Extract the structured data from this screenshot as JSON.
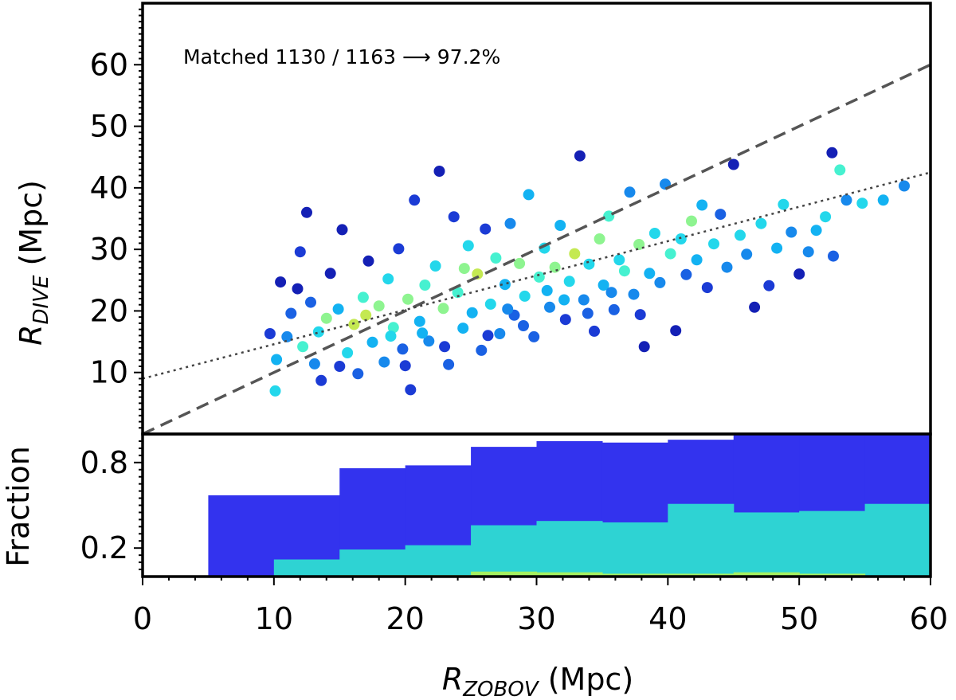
{
  "chart_data": [
    {
      "type": "scatter",
      "panel": "top",
      "xlabel_main": "R",
      "xlabel_sub": "ZOBOV",
      "xlabel_unit": " (Mpc)",
      "ylabel_main": "R",
      "ylabel_sub": "DIVE",
      "ylabel_unit": " (Mpc)",
      "xlim": [
        0,
        60
      ],
      "ylim": [
        0,
        70
      ],
      "yticks": [
        10,
        20,
        30,
        40,
        50,
        60
      ],
      "ytick_labels": [
        "10",
        "20",
        "30",
        "40",
        "50",
        "60"
      ],
      "annotation": "Matched 1130 / 1163 ⟶ 97.2%",
      "lines": [
        {
          "name": "one-to-one",
          "style": "dashed",
          "x": [
            0,
            60
          ],
          "y": [
            0,
            60
          ],
          "color": "#555555"
        },
        {
          "name": "fit",
          "style": "dotted",
          "x": [
            0,
            60
          ],
          "y": [
            9,
            42.5
          ],
          "color": "#444444"
        }
      ],
      "colormap": [
        "#0a0a8c",
        "#1b2fd0",
        "#1a6de8",
        "#13b2f2",
        "#2ef0e6",
        "#a6f57a",
        "#f2d816"
      ],
      "points": [
        [
          9.7,
          16.3,
          0.2
        ],
        [
          10.2,
          12.1,
          0.5
        ],
        [
          10.5,
          24.7,
          0.1
        ],
        [
          10.1,
          7.0,
          0.6
        ],
        [
          11.3,
          19.6,
          0.3
        ],
        [
          11.8,
          23.6,
          0.1
        ],
        [
          12.2,
          14.2,
          0.7
        ],
        [
          12.5,
          36.0,
          0.1
        ],
        [
          12.0,
          29.6,
          0.2
        ],
        [
          13.1,
          11.4,
          0.4
        ],
        [
          13.6,
          8.7,
          0.2
        ],
        [
          14.0,
          18.8,
          0.8
        ],
        [
          14.3,
          26.1,
          0.1
        ],
        [
          14.9,
          20.3,
          0.5
        ],
        [
          15.2,
          33.2,
          0.1
        ],
        [
          15.6,
          13.2,
          0.6
        ],
        [
          16.1,
          17.8,
          0.9
        ],
        [
          16.4,
          9.8,
          0.3
        ],
        [
          16.8,
          22.2,
          0.7
        ],
        [
          17.2,
          28.1,
          0.1
        ],
        [
          17.5,
          14.9,
          0.5
        ],
        [
          18.0,
          20.8,
          0.8
        ],
        [
          18.4,
          11.7,
          0.4
        ],
        [
          18.7,
          25.2,
          0.6
        ],
        [
          19.1,
          17.3,
          0.7
        ],
        [
          19.5,
          30.1,
          0.2
        ],
        [
          19.8,
          13.8,
          0.3
        ],
        [
          20.2,
          21.9,
          0.8
        ],
        [
          20.4,
          7.2,
          0.2
        ],
        [
          20.7,
          38.0,
          0.2
        ],
        [
          21.1,
          18.3,
          0.5
        ],
        [
          21.5,
          24.2,
          0.7
        ],
        [
          21.8,
          15.1,
          0.4
        ],
        [
          22.3,
          27.3,
          0.6
        ],
        [
          22.6,
          42.7,
          0.1
        ],
        [
          22.9,
          20.4,
          0.8
        ],
        [
          23.3,
          11.3,
          0.3
        ],
        [
          23.7,
          35.3,
          0.2
        ],
        [
          24.0,
          23.0,
          0.7
        ],
        [
          24.4,
          17.2,
          0.5
        ],
        [
          24.8,
          30.6,
          0.6
        ],
        [
          25.1,
          19.7,
          0.5
        ],
        [
          25.5,
          26.0,
          0.9
        ],
        [
          25.8,
          13.6,
          0.3
        ],
        [
          26.1,
          33.3,
          0.2
        ],
        [
          26.5,
          21.1,
          0.6
        ],
        [
          26.9,
          28.6,
          0.7
        ],
        [
          27.2,
          16.3,
          0.4
        ],
        [
          27.6,
          24.3,
          0.5
        ],
        [
          28.0,
          34.2,
          0.4
        ],
        [
          28.3,
          19.3,
          0.3
        ],
        [
          28.7,
          27.7,
          0.8
        ],
        [
          29.1,
          22.4,
          0.6
        ],
        [
          29.4,
          38.9,
          0.5
        ],
        [
          29.8,
          15.8,
          0.3
        ],
        [
          30.2,
          25.5,
          0.7
        ],
        [
          30.6,
          30.2,
          0.6
        ],
        [
          31.0,
          20.6,
          0.4
        ],
        [
          31.4,
          27.1,
          0.8
        ],
        [
          31.8,
          33.9,
          0.5
        ],
        [
          32.2,
          18.6,
          0.2
        ],
        [
          32.5,
          24.8,
          0.6
        ],
        [
          32.9,
          29.3,
          0.9
        ],
        [
          33.3,
          45.2,
          0.1
        ],
        [
          33.6,
          21.8,
          0.4
        ],
        [
          34.0,
          27.6,
          0.6
        ],
        [
          34.4,
          16.7,
          0.2
        ],
        [
          34.8,
          31.7,
          0.8
        ],
        [
          35.1,
          24.2,
          0.5
        ],
        [
          35.5,
          35.4,
          0.7
        ],
        [
          35.9,
          20.2,
          0.3
        ],
        [
          36.3,
          28.3,
          0.6
        ],
        [
          36.7,
          26.5,
          0.7
        ],
        [
          37.1,
          39.3,
          0.4
        ],
        [
          37.4,
          22.7,
          0.4
        ],
        [
          37.8,
          30.8,
          0.8
        ],
        [
          38.2,
          14.2,
          0.1
        ],
        [
          38.6,
          26.1,
          0.5
        ],
        [
          39.0,
          32.6,
          0.6
        ],
        [
          39.4,
          24.6,
          0.4
        ],
        [
          39.8,
          40.6,
          0.4
        ],
        [
          40.2,
          29.3,
          0.7
        ],
        [
          40.6,
          16.8,
          0.1
        ],
        [
          41.0,
          31.7,
          0.6
        ],
        [
          41.4,
          25.9,
          0.3
        ],
        [
          41.8,
          34.6,
          0.8
        ],
        [
          42.2,
          28.3,
          0.5
        ],
        [
          42.6,
          37.2,
          0.5
        ],
        [
          43.0,
          23.8,
          0.2
        ],
        [
          43.5,
          30.9,
          0.6
        ],
        [
          44.0,
          35.7,
          0.3
        ],
        [
          44.5,
          27.1,
          0.4
        ],
        [
          45.0,
          43.8,
          0.1
        ],
        [
          45.5,
          32.3,
          0.6
        ],
        [
          46.0,
          29.2,
          0.4
        ],
        [
          46.6,
          20.6,
          0.1
        ],
        [
          47.1,
          34.2,
          0.6
        ],
        [
          47.7,
          24.1,
          0.2
        ],
        [
          48.3,
          30.2,
          0.5
        ],
        [
          48.8,
          37.3,
          0.6
        ],
        [
          49.4,
          32.8,
          0.4
        ],
        [
          50.0,
          26.0,
          0.1
        ],
        [
          50.7,
          29.6,
          0.4
        ],
        [
          51.3,
          33.1,
          0.5
        ],
        [
          52.0,
          35.3,
          0.6
        ],
        [
          52.5,
          45.7,
          0.1
        ],
        [
          52.6,
          28.9,
          0.3
        ],
        [
          53.1,
          42.9,
          0.7
        ],
        [
          53.6,
          38.0,
          0.4
        ],
        [
          54.8,
          37.5,
          0.6
        ],
        [
          56.4,
          38.0,
          0.5
        ],
        [
          58.0,
          40.3,
          0.4
        ],
        [
          11.0,
          15.8,
          0.4
        ],
        [
          12.8,
          21.4,
          0.3
        ],
        [
          13.4,
          16.6,
          0.6
        ],
        [
          15.0,
          11.0,
          0.2
        ],
        [
          17.0,
          19.3,
          0.9
        ],
        [
          18.9,
          15.9,
          0.6
        ],
        [
          20.0,
          11.1,
          0.2
        ],
        [
          21.3,
          16.4,
          0.5
        ],
        [
          23.0,
          14.2,
          0.2
        ],
        [
          24.5,
          26.9,
          0.8
        ],
        [
          26.3,
          16.0,
          0.2
        ],
        [
          27.8,
          20.3,
          0.4
        ],
        [
          29.0,
          17.6,
          0.3
        ],
        [
          30.8,
          23.3,
          0.5
        ],
        [
          32.1,
          21.8,
          0.5
        ],
        [
          33.9,
          19.6,
          0.3
        ],
        [
          35.7,
          23.0,
          0.4
        ],
        [
          37.9,
          19.4,
          0.2
        ]
      ]
    },
    {
      "type": "bar",
      "panel": "bottom",
      "ylabel": "Fraction",
      "ylim": [
        0,
        1
      ],
      "yticks": [
        0.2,
        0.8
      ],
      "ytick_labels": [
        "0.2",
        "0.8"
      ],
      "xticks": [
        0,
        10,
        20,
        30,
        40,
        50,
        60
      ],
      "xtick_labels": [
        "0",
        "10",
        "20",
        "30",
        "40",
        "50",
        "60"
      ],
      "bin_edges": [
        0,
        5,
        10,
        15,
        20,
        25,
        30,
        35,
        40,
        45,
        50,
        55,
        60
      ],
      "series": [
        {
          "name": "blue",
          "color": "#3333ee",
          "values": [
            0,
            0.57,
            0.57,
            0.76,
            0.78,
            0.91,
            0.95,
            0.94,
            0.96,
            1.0,
            1.0,
            1.0
          ]
        },
        {
          "name": "cyan",
          "color": "#2ed3d3",
          "values": [
            0,
            0,
            0.12,
            0.19,
            0.22,
            0.36,
            0.39,
            0.38,
            0.51,
            0.45,
            0.46,
            0.51
          ]
        },
        {
          "name": "yellow-green",
          "color": "#a6f061",
          "values": [
            0,
            0,
            0.005,
            0.01,
            0.01,
            0.035,
            0.03,
            0.02,
            0.02,
            0.03,
            0.02,
            0.0
          ]
        }
      ]
    }
  ]
}
